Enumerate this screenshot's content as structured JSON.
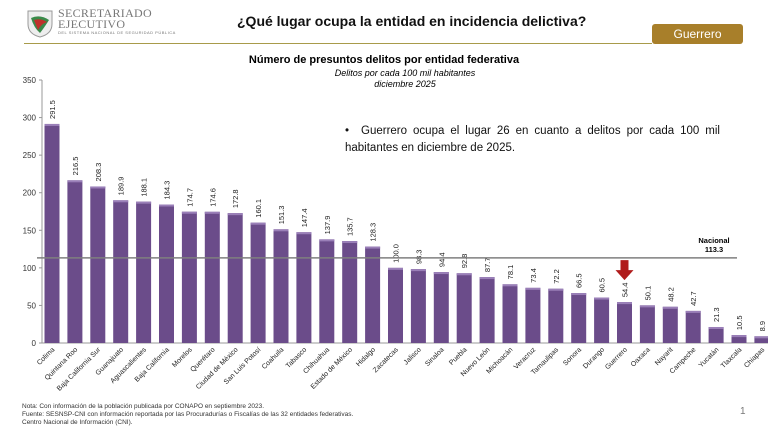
{
  "header": {
    "org_name_1": "SECRETARIADO",
    "org_name_2": "EJECUTIVO",
    "org_sub": "DEL SISTEMA NACIONAL DE SEGURIDAD PÚBLICA",
    "title": "¿Qué lugar ocupa la entidad en incidencia delictiva?",
    "state_badge": "Guerrero"
  },
  "note": "Guerrero ocupa el lugar 26 en cuanto a delitos por cada 100 mil habitantes en diciembre de 2025.",
  "footer": {
    "line1": "Nota: Con información de la población publicada por CONAPO en septiembre 2023.",
    "line2": "Fuente: SESNSP-CNI con información reportada por las Procuradurías o Fiscalías de las 32 entidades federativas.",
    "line3": "Centro Nacional de Información (CNI).",
    "page": "1"
  },
  "colors": {
    "bar": "#6b4c8a",
    "accent": "#a87f2a",
    "arrow": "#b01c1c",
    "reference_line": "#7f7f7f"
  },
  "chart_data": {
    "type": "bar",
    "title": "Número de presuntos delitos por entidad federativa",
    "subtitle": "Delitos por cada 100 mil habitantes",
    "subtitle2": "diciembre 2025",
    "ylim": [
      0,
      350
    ],
    "yticks": [
      0,
      50,
      100,
      150,
      200,
      250,
      300,
      350
    ],
    "grid": false,
    "categories": [
      "Colima",
      "Quintana Roo",
      "Baja California Sur",
      "Guanajuato",
      "Aguascalientes",
      "Baja California",
      "Morelos",
      "Querétaro",
      "Ciudad de México",
      "San Luis Potosí",
      "Coahuila",
      "Tabasco",
      "Chihuahua",
      "Estado de México",
      "Hidalgo",
      "Zacatecas",
      "Jalisco",
      "Sinaloa",
      "Puebla",
      "Nuevo León",
      "Michoacán",
      "Veracruz",
      "Tamaulipas",
      "Sonora",
      "Durango",
      "Guerrero",
      "Oaxaca",
      "Nayarit",
      "Campeche",
      "Yucatán",
      "Tlaxcala",
      "Chiapas"
    ],
    "values": [
      291.5,
      216.5,
      208.3,
      189.9,
      188.1,
      184.3,
      174.7,
      174.6,
      172.8,
      160.1,
      151.3,
      147.4,
      137.9,
      135.7,
      128.3,
      100.0,
      98.3,
      94.4,
      92.8,
      87.7,
      78.1,
      73.4,
      72.2,
      66.5,
      60.5,
      54.4,
      50.1,
      48.2,
      42.7,
      21.3,
      10.5,
      8.9
    ],
    "value_labels": [
      "291.5",
      "216.5",
      "208.3",
      "189.9",
      "188.1",
      "184.3",
      "174.7",
      "174.6",
      "172.8",
      "160.1",
      "151.3",
      "147.4",
      "137.9",
      "135.7",
      "128.3",
      "100.0",
      "98.3",
      "94.4",
      "92.8",
      "87.7",
      "78.1",
      "73.4",
      "72.2",
      "66.5",
      "60.5",
      "54.4",
      "50.1",
      "48.2",
      "42.7",
      "21.3",
      "10.5",
      "8.9"
    ],
    "reference": {
      "label": "Nacional",
      "value": 113.3,
      "value_label": "113.3"
    },
    "highlight": "Guerrero"
  }
}
